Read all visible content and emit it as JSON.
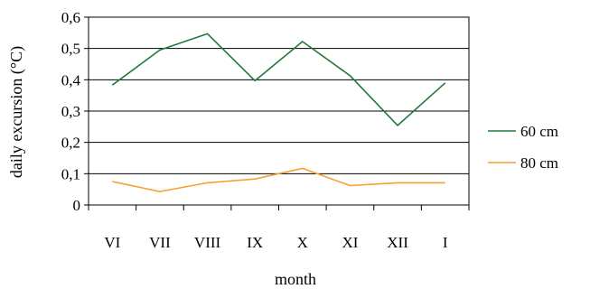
{
  "chart_data": {
    "type": "line",
    "title": "",
    "xlabel": "month",
    "ylabel": "daily excursion (°C)",
    "categories": [
      "VI",
      "VII",
      "VIII",
      "IX",
      "X",
      "XI",
      "XII",
      "I"
    ],
    "ylim": [
      0,
      0.6
    ],
    "yticks": [
      "0",
      "0,1",
      "0,2",
      "0,3",
      "0,4",
      "0,5",
      "0,6"
    ],
    "yticks_values": [
      0,
      0.1,
      0.2,
      0.3,
      0.4,
      0.5,
      0.6
    ],
    "grid": true,
    "legend_position": "right",
    "series": [
      {
        "name": "60 cm",
        "color": "#1f7a3a",
        "values": [
          0.383,
          0.495,
          0.547,
          0.397,
          0.522,
          0.413,
          0.254,
          0.39
        ]
      },
      {
        "name": "80 cm",
        "color": "#f5a030",
        "values": [
          0.075,
          0.043,
          0.071,
          0.083,
          0.117,
          0.062,
          0.071,
          0.071
        ]
      }
    ]
  }
}
